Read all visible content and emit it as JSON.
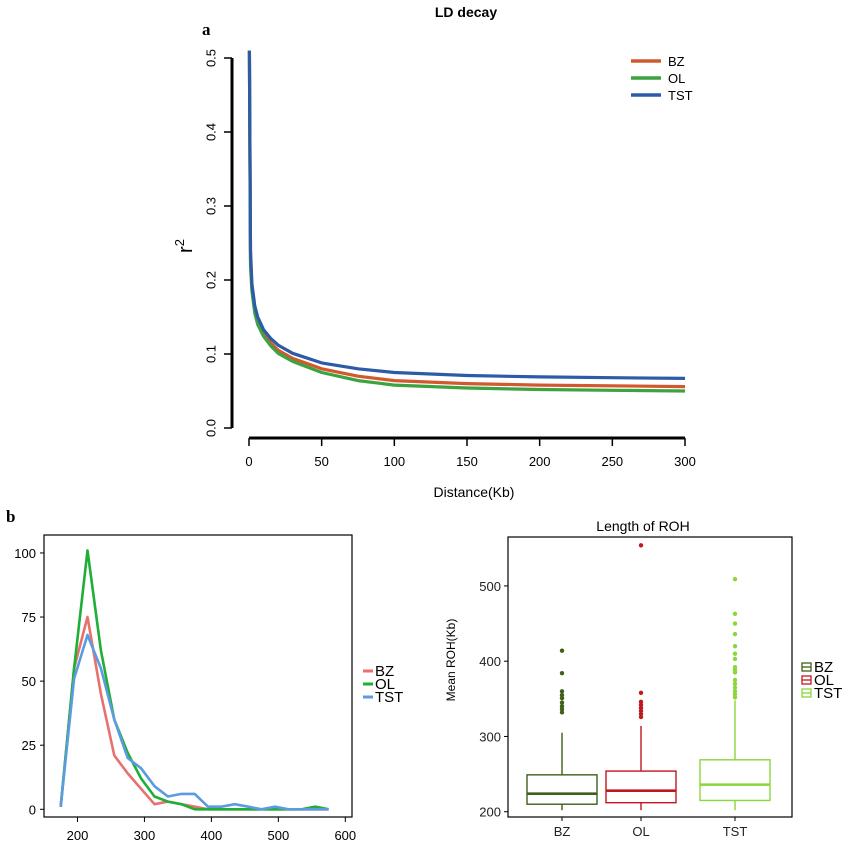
{
  "panel_a_letter": "a",
  "panel_b_letter": "b",
  "chart_data": [
    {
      "type": "line",
      "title": "LD decay",
      "xlabel": "Distance(Kb)",
      "ylabel": "r",
      "ylabel_sup": "2",
      "xlim": [
        0,
        300
      ],
      "ylim": [
        0,
        0.5
      ],
      "xticks": [
        "0",
        "50",
        "100",
        "150",
        "200",
        "250",
        "300"
      ],
      "yticks": [
        "0.0",
        "0.1",
        "0.2",
        "0.3",
        "0.4",
        "0.5"
      ],
      "legend_position": "top-right",
      "grid": false,
      "x": [
        0.3,
        1,
        2,
        4,
        6,
        10,
        15,
        20,
        30,
        50,
        75,
        100,
        150,
        200,
        250,
        300
      ],
      "series": [
        {
          "name": "BZ",
          "color": "#D2582E",
          "values": [
            0.51,
            0.23,
            0.19,
            0.16,
            0.145,
            0.128,
            0.115,
            0.105,
            0.094,
            0.08,
            0.07,
            0.064,
            0.06,
            0.058,
            0.057,
            0.056
          ]
        },
        {
          "name": "OL",
          "color": "#3DA23F",
          "values": [
            0.51,
            0.22,
            0.185,
            0.155,
            0.14,
            0.124,
            0.111,
            0.101,
            0.09,
            0.075,
            0.064,
            0.058,
            0.054,
            0.052,
            0.051,
            0.05
          ]
        },
        {
          "name": "TST",
          "color": "#2C5BA8",
          "values": [
            0.51,
            0.24,
            0.195,
            0.165,
            0.15,
            0.133,
            0.121,
            0.112,
            0.101,
            0.088,
            0.08,
            0.075,
            0.071,
            0.069,
            0.068,
            0.067
          ]
        }
      ]
    },
    {
      "type": "line",
      "title": "",
      "xlabel": "",
      "ylabel": "",
      "xlim": [
        150,
        610
      ],
      "ylim": [
        -3,
        107
      ],
      "xticks": [
        "200",
        "300",
        "400",
        "500",
        "600"
      ],
      "yticks": [
        "0",
        "25",
        "50",
        "75",
        "100"
      ],
      "legend_position": "right",
      "grid": false,
      "x": [
        175,
        195,
        215,
        235,
        255,
        275,
        295,
        315,
        335,
        355,
        375,
        395,
        415,
        435,
        455,
        475,
        495,
        515,
        535,
        555,
        575
      ],
      "series": [
        {
          "name": "BZ",
          "color": "#E8716D",
          "values": [
            1,
            55,
            75,
            45,
            21,
            14,
            8,
            2,
            3,
            2,
            1,
            0,
            0,
            0,
            0,
            0,
            0,
            0,
            0,
            0,
            0
          ]
        },
        {
          "name": "OL",
          "color": "#1FAE36",
          "values": [
            1,
            55,
            101,
            62,
            35,
            22,
            12,
            5,
            3,
            2,
            0,
            0,
            0,
            0,
            0,
            0,
            0,
            0,
            0,
            1,
            0
          ]
        },
        {
          "name": "TST",
          "color": "#5B9BE0",
          "values": [
            1,
            51,
            68,
            55,
            35,
            20,
            16,
            9,
            5,
            6,
            6,
            1,
            1,
            2,
            1,
            0,
            1,
            0,
            0,
            0,
            0
          ]
        }
      ]
    },
    {
      "type": "box",
      "title": "Length of ROH",
      "xlabel": "",
      "ylabel": "Mean ROH(Kb)",
      "ylim": [
        193,
        565
      ],
      "yticks": [
        "200",
        "300",
        "400",
        "500"
      ],
      "categories": [
        "BZ",
        "OL",
        "TST"
      ],
      "legend_position": "right",
      "series": [
        {
          "name": "BZ",
          "color": "#3F5F1A",
          "min": 202,
          "q1": 210,
          "median": 224,
          "q3": 249,
          "max": 305,
          "outliers": [
            414,
            384,
            360,
            355,
            351,
            345,
            340,
            336,
            332
          ]
        },
        {
          "name": "OL",
          "color": "#C0181F",
          "min": 202,
          "q1": 212,
          "median": 228,
          "q3": 254,
          "max": 314,
          "outliers": [
            554,
            358,
            346,
            342,
            338,
            334,
            330,
            326
          ]
        },
        {
          "name": "TST",
          "color": "#8CD53A",
          "min": 202,
          "q1": 215,
          "median": 236,
          "q3": 269,
          "max": 348,
          "outliers": [
            509,
            463,
            450,
            436,
            420,
            410,
            403,
            392,
            388,
            385,
            375,
            370,
            365,
            360,
            356,
            352
          ]
        }
      ]
    }
  ]
}
